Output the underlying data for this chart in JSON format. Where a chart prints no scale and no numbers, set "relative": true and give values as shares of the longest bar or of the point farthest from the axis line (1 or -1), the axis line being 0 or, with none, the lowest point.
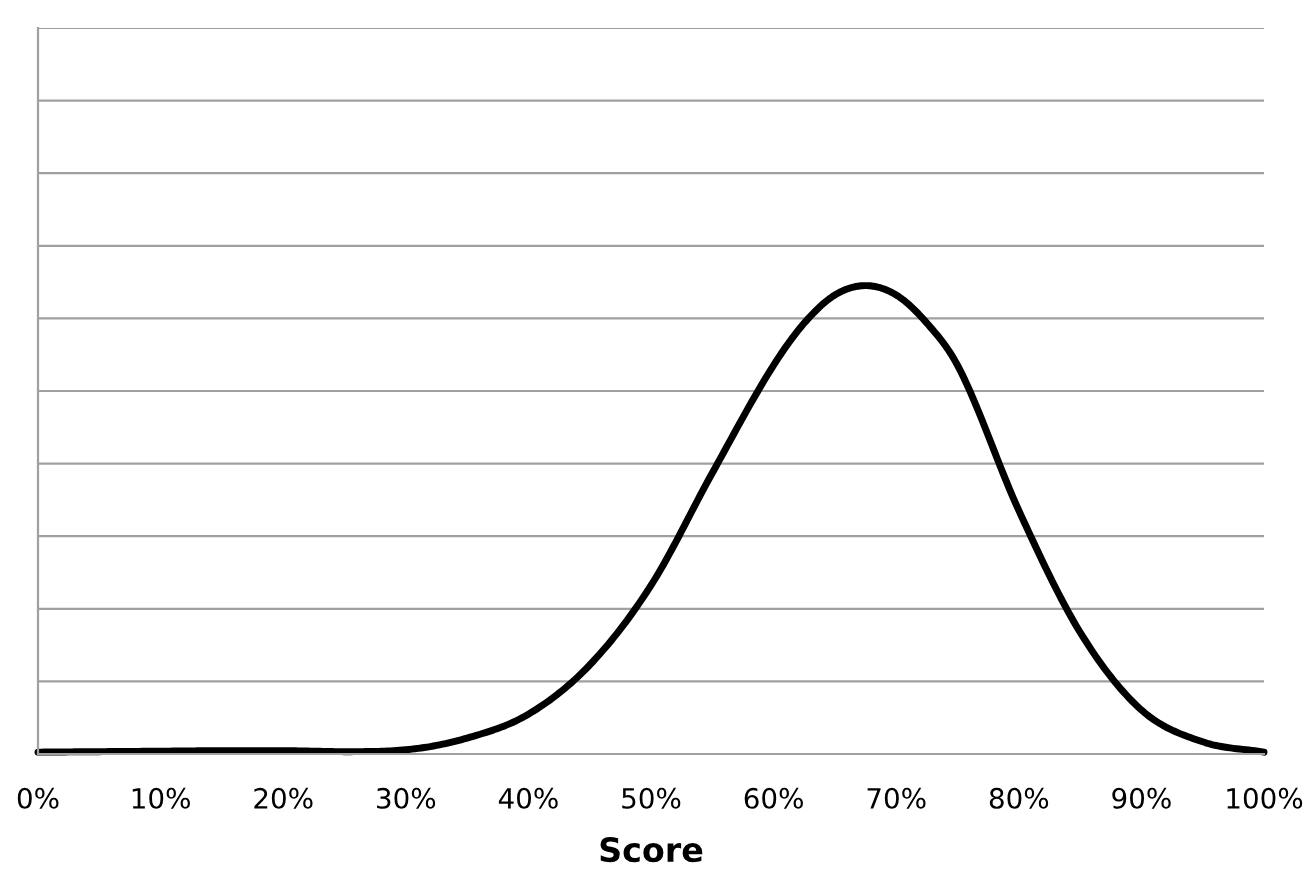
{
  "chart_data": {
    "type": "line",
    "xlabel": "Score",
    "relative": true,
    "grid": "y",
    "marker": "none",
    "line_style": "solid",
    "x": [
      0,
      5,
      10,
      15,
      20,
      25,
      30,
      35,
      40,
      45,
      50,
      55,
      60,
      62.5,
      65,
      67.5,
      70,
      72.5,
      75,
      80,
      85,
      90,
      95,
      100
    ],
    "series": [
      {
        "color": "#000000",
        "values": [
          0.004,
          0.005,
          0.006,
          0.007,
          0.007,
          0.005,
          0.009,
          0.034,
          0.085,
          0.19,
          0.36,
          0.6,
          0.83,
          0.92,
          0.98,
          1,
          0.98,
          0.92,
          0.83,
          0.52,
          0.26,
          0.094,
          0.026,
          0.004
        ]
      }
    ],
    "xlim": [
      0,
      100
    ],
    "xticks": [
      {
        "value": 0,
        "label": "0%"
      },
      {
        "value": 10,
        "label": "10%"
      },
      {
        "value": 20,
        "label": "20%"
      },
      {
        "value": 30,
        "label": "30%"
      },
      {
        "value": 40,
        "label": "40%"
      },
      {
        "value": 50,
        "label": "50%"
      },
      {
        "value": 60,
        "label": "60%"
      },
      {
        "value": 70,
        "label": "70%"
      },
      {
        "value": 80,
        "label": "80%"
      },
      {
        "value": 90,
        "label": "90%"
      },
      {
        "value": 100,
        "label": "100%"
      }
    ]
  }
}
